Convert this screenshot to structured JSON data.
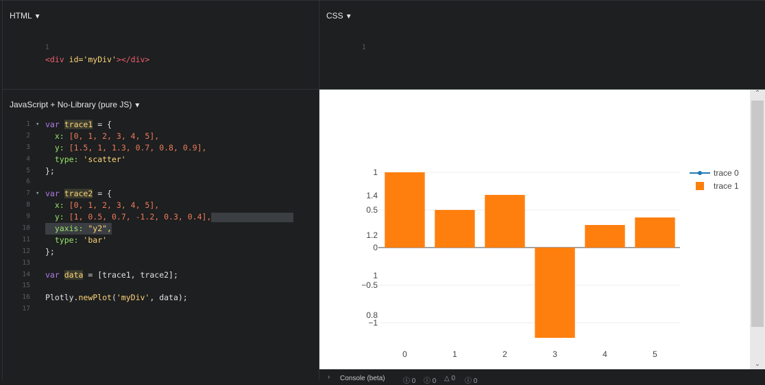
{
  "html_panel": {
    "title": "HTML",
    "lines": [
      {
        "n": "1"
      }
    ],
    "code_parts": {
      "open": "<div",
      "attr": "id=",
      "val": "'myDiv'",
      "close": "></div>"
    }
  },
  "css_panel": {
    "title": "CSS",
    "line1": "1"
  },
  "js_panel": {
    "title": "JavaScript + No-Library (pure JS)",
    "line_numbers": [
      "1",
      "2",
      "3",
      "4",
      "5",
      "6",
      "7",
      "8",
      "9",
      "10",
      "11",
      "12",
      "13",
      "14",
      "15",
      "16",
      "17"
    ],
    "t1_var": "var",
    "t1_name": "trace1",
    "t1_eq": " = {",
    "t1_x_key": "x:",
    "t1_x_val": "[0, 1, 2, 3, 4, 5],",
    "t1_y_key": "y:",
    "t1_y_val": "[1.5, 1, 1.3, 0.7, 0.8, 0.9],",
    "t1_type_key": "type:",
    "t1_type_val": "'scatter'",
    "close": "};",
    "t2_var": "var",
    "t2_name": "trace2",
    "t2_eq": " = {",
    "t2_x_key": "x:",
    "t2_x_val": "[0, 1, 2, 3, 4, 5],",
    "t2_y_key": "y:",
    "t2_y_val": "[1, 0.5, 0.7, -1.2, 0.3, 0.4],",
    "t2_yaxis_key": "yaxis:",
    "t2_yaxis_val": "\"y2\",",
    "t2_type_key": "type:",
    "t2_type_val": "'bar'",
    "data_var": "var",
    "data_name": "data",
    "data_val": " = [trace1, trace2];",
    "plot_obj": "Plotly.",
    "plot_fn": "newPlot",
    "plot_args_open": "(",
    "plot_arg_str": "'myDiv'",
    "plot_args_close": ", data);"
  },
  "console": {
    "label": "Console (beta)",
    "counts": [
      "0",
      "0",
      "0",
      "0"
    ]
  },
  "chart_data": {
    "type": "bar",
    "x": [
      0,
      1,
      2,
      3,
      4,
      5
    ],
    "series": [
      {
        "name": "trace 0",
        "type": "line",
        "values": [
          1.5,
          1,
          1.3,
          0.7,
          0.8,
          0.9
        ],
        "color": "#1f77b4",
        "drawn": false
      },
      {
        "name": "trace 1",
        "type": "bar",
        "values": [
          1,
          0.5,
          0.7,
          -1.2,
          0.3,
          0.4
        ],
        "color": "#ff7f0e"
      }
    ],
    "x_ticks": [
      "0",
      "1",
      "2",
      "3",
      "4",
      "5"
    ],
    "y_ticks": [
      "1",
      "0.5",
      "0",
      "−0.5",
      "−1"
    ],
    "y_tick_values": [
      1,
      0.5,
      0,
      -0.5,
      -1
    ],
    "y2_ticks": [
      "1.4",
      "1.2",
      "1",
      "0.8"
    ],
    "y2_tick_values": [
      1.4,
      1.2,
      1,
      0.8
    ],
    "ylim": [
      -1.2,
      1
    ],
    "legend_position": "top-right",
    "grid": true
  }
}
